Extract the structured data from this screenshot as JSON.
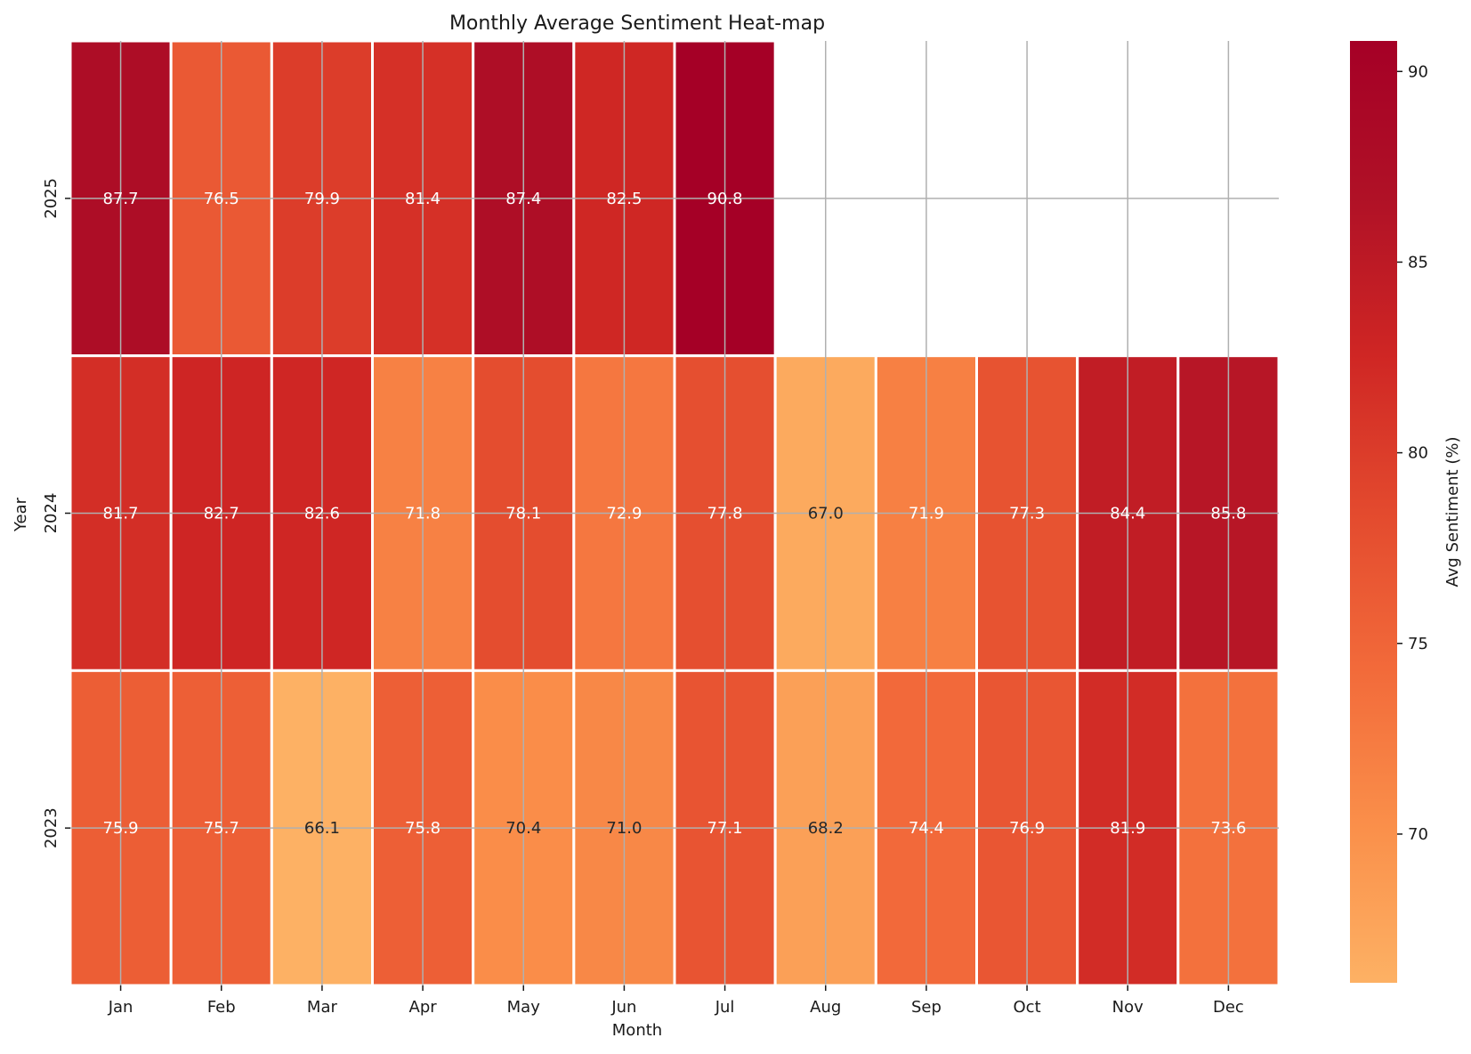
{
  "chart_data": {
    "type": "heatmap",
    "title": "Monthly Average Sentiment Heat-map",
    "xlabel": "Month",
    "ylabel": "Year",
    "x_categories": [
      "Jan",
      "Feb",
      "Mar",
      "Apr",
      "May",
      "Jun",
      "Jul",
      "Aug",
      "Sep",
      "Oct",
      "Nov",
      "Dec"
    ],
    "y_categories": [
      "2025",
      "2024",
      "2023"
    ],
    "values": [
      [
        87.7,
        76.5,
        79.9,
        81.4,
        87.4,
        82.5,
        90.8,
        null,
        null,
        null,
        null,
        null
      ],
      [
        81.7,
        82.7,
        82.6,
        71.8,
        78.1,
        72.9,
        77.8,
        67.0,
        71.9,
        77.3,
        84.4,
        85.8
      ],
      [
        75.9,
        75.7,
        66.1,
        75.8,
        70.4,
        71.0,
        77.1,
        68.2,
        74.4,
        76.9,
        81.9,
        73.6
      ]
    ],
    "colorbar": {
      "label": "Avg Sentiment (%)",
      "range": [
        66.1,
        90.8
      ],
      "ticks": [
        70,
        75,
        80,
        85,
        90
      ]
    },
    "colormap": [
      "#fdb164",
      "#fa8f4a",
      "#f26a3a",
      "#e34a2e",
      "#cf2624",
      "#b01126",
      "#a50026"
    ],
    "grid": true,
    "annotations": true
  }
}
